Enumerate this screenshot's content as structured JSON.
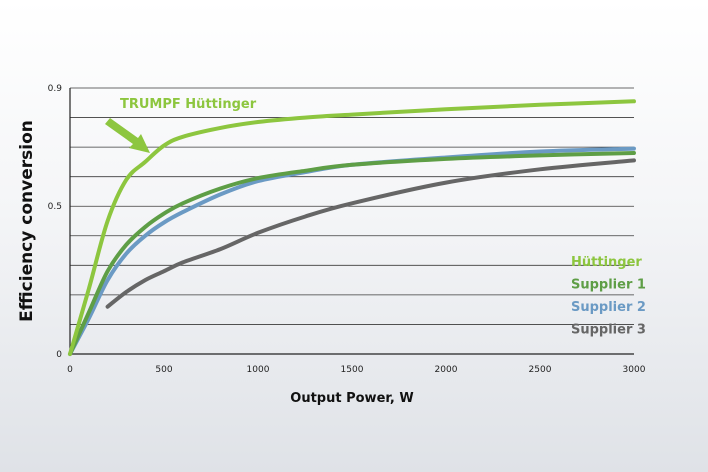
{
  "chart_data": {
    "type": "line",
    "title": "",
    "xlabel": "Output Power, W",
    "ylabel": "Efficiency conversion",
    "xlim": [
      0,
      3000
    ],
    "ylim": [
      0,
      0.9
    ],
    "x_ticks": [
      0,
      500,
      1000,
      1500,
      2000,
      2500,
      3000
    ],
    "x_tick_labels": [
      "0",
      "500",
      "1000",
      "1500",
      "2000",
      "2500",
      "3000"
    ],
    "y_ticks": [
      0,
      0.5,
      0.9
    ],
    "y_tick_labels": [
      "0",
      "0.5",
      "0.9"
    ],
    "grid": true,
    "legend_position": "right",
    "annotation": {
      "text": "TRUMPF Hüttinger",
      "target_series": "Hüttinger",
      "target_x": 430,
      "target_y": 0.68
    },
    "series": [
      {
        "name": "Hüttinger",
        "color": "#8dc63f",
        "x": [
          0,
          100,
          200,
          300,
          400,
          500,
          600,
          800,
          1000,
          1250,
          1500,
          2000,
          2500,
          3000
        ],
        "y": [
          0,
          0.22,
          0.45,
          0.59,
          0.65,
          0.705,
          0.735,
          0.765,
          0.785,
          0.8,
          0.81,
          0.828,
          0.843,
          0.855
        ]
      },
      {
        "name": "Supplier 1",
        "color": "#5e9e46",
        "x": [
          0,
          100,
          200,
          300,
          400,
          500,
          600,
          800,
          1000,
          1250,
          1500,
          2000,
          2500,
          3000
        ],
        "y": [
          0,
          0.14,
          0.28,
          0.37,
          0.43,
          0.475,
          0.51,
          0.56,
          0.595,
          0.62,
          0.64,
          0.66,
          0.672,
          0.68
        ]
      },
      {
        "name": "Supplier 2",
        "color": "#6b9ac4",
        "x": [
          0,
          100,
          200,
          300,
          400,
          500,
          600,
          800,
          1000,
          1250,
          1500,
          2000,
          2500,
          3000
        ],
        "y": [
          0,
          0.12,
          0.25,
          0.34,
          0.4,
          0.445,
          0.48,
          0.54,
          0.585,
          0.615,
          0.64,
          0.665,
          0.685,
          0.695
        ]
      },
      {
        "name": "Supplier 3",
        "color": "#666666",
        "x": [
          200,
          300,
          400,
          500,
          600,
          800,
          1000,
          1250,
          1500,
          2000,
          2500,
          3000
        ],
        "y": [
          0.16,
          0.21,
          0.25,
          0.28,
          0.31,
          0.355,
          0.41,
          0.465,
          0.51,
          0.58,
          0.625,
          0.655
        ]
      }
    ]
  }
}
